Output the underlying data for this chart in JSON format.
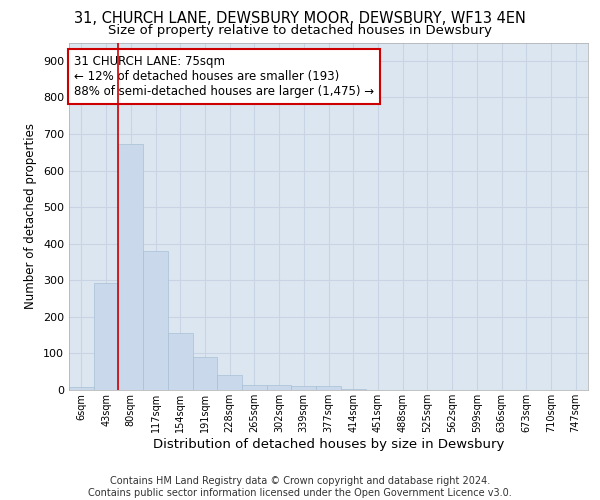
{
  "title1": "31, CHURCH LANE, DEWSBURY MOOR, DEWSBURY, WF13 4EN",
  "title2": "Size of property relative to detached houses in Dewsbury",
  "xlabel": "Distribution of detached houses by size in Dewsbury",
  "ylabel": "Number of detached properties",
  "bin_labels": [
    "6sqm",
    "43sqm",
    "80sqm",
    "117sqm",
    "154sqm",
    "191sqm",
    "228sqm",
    "265sqm",
    "302sqm",
    "339sqm",
    "377sqm",
    "414sqm",
    "451sqm",
    "488sqm",
    "525sqm",
    "562sqm",
    "599sqm",
    "636sqm",
    "673sqm",
    "710sqm",
    "747sqm"
  ],
  "bar_values": [
    8,
    293,
    672,
    380,
    155,
    90,
    40,
    14,
    14,
    10,
    10,
    2,
    0,
    0,
    0,
    0,
    0,
    0,
    0,
    0,
    0
  ],
  "bar_color": "#c9d9eb",
  "bar_edgecolor": "#a8c0d6",
  "grid_color": "#c8d4e4",
  "bg_color": "#dce6f0",
  "annotation_text": "31 CHURCH LANE: 75sqm\n← 12% of detached houses are smaller (193)\n88% of semi-detached houses are larger (1,475) →",
  "marker_color": "#cc0000",
  "ylim": [
    0,
    950
  ],
  "yticks": [
    0,
    100,
    200,
    300,
    400,
    500,
    600,
    700,
    800,
    900
  ],
  "footer": "Contains HM Land Registry data © Crown copyright and database right 2024.\nContains public sector information licensed under the Open Government Licence v3.0.",
  "title1_fontsize": 10.5,
  "title2_fontsize": 9.5,
  "xlabel_fontsize": 9.5,
  "ylabel_fontsize": 8.5,
  "annotation_fontsize": 8.5,
  "footer_fontsize": 7.0
}
